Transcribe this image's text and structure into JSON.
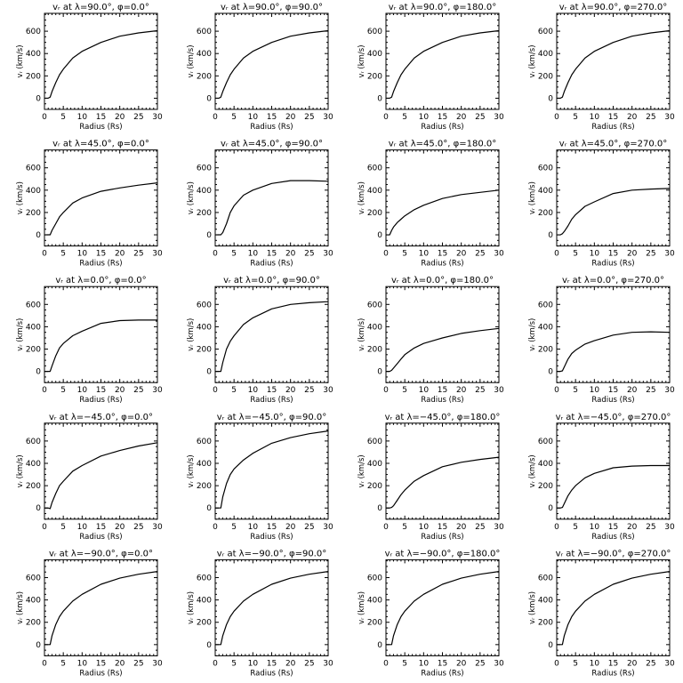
{
  "chart_data": {
    "type": "line",
    "layout": "grid 5 rows x 4 columns",
    "grid": false,
    "xlabel": "Radius (Rs)",
    "ylabel": "vᵣ (km/s)",
    "xlim": [
      0,
      30
    ],
    "ylim": [
      -100,
      760
    ],
    "xticks": [
      0,
      5,
      10,
      15,
      20,
      25,
      30
    ],
    "yticks": [
      0,
      200,
      400,
      600
    ],
    "x": [
      1,
      1.5,
      2,
      3,
      4,
      5,
      7.5,
      10,
      15,
      20,
      25,
      30
    ],
    "panels": [
      {
        "title": "vᵣ at λ=90.0°, φ=0.0°",
        "y": [
          0,
          10,
          60,
          140,
          210,
          260,
          360,
          420,
          500,
          555,
          585,
          605
        ]
      },
      {
        "title": "vᵣ at λ=90.0°, φ=90.0°",
        "y": [
          0,
          10,
          60,
          140,
          210,
          260,
          360,
          420,
          500,
          555,
          585,
          605
        ]
      },
      {
        "title": "vᵣ at λ=90.0°, φ=180.0°",
        "y": [
          0,
          10,
          60,
          140,
          210,
          260,
          360,
          420,
          500,
          555,
          585,
          605
        ]
      },
      {
        "title": "vᵣ at λ=90.0°, φ=270.0°",
        "y": [
          0,
          10,
          60,
          140,
          210,
          260,
          360,
          420,
          500,
          555,
          585,
          605
        ]
      },
      {
        "title": "vᵣ at λ=45.0°, φ=0.0°",
        "y": [
          0,
          0,
          40,
          100,
          160,
          200,
          285,
          330,
          390,
          420,
          445,
          465
        ]
      },
      {
        "title": "vᵣ at λ=45.0°, φ=90.0°",
        "y": [
          0,
          0,
          20,
          100,
          200,
          260,
          355,
          400,
          460,
          485,
          485,
          480
        ]
      },
      {
        "title": "vᵣ at λ=45.0°, φ=180.0°",
        "y": [
          0,
          40,
          70,
          110,
          140,
          170,
          225,
          265,
          325,
          360,
          380,
          400
        ]
      },
      {
        "title": "vᵣ at λ=45.0°, φ=270.0°",
        "y": [
          0,
          10,
          30,
          80,
          140,
          180,
          255,
          295,
          370,
          400,
          410,
          415
        ]
      },
      {
        "title": "vᵣ at λ=0.0°, φ=0.0°",
        "y": [
          0,
          0,
          50,
          140,
          210,
          250,
          320,
          360,
          430,
          455,
          460,
          460
        ]
      },
      {
        "title": "vᵣ at λ=0.0°, φ=90.0°",
        "y": [
          0,
          0,
          80,
          200,
          270,
          320,
          420,
          480,
          560,
          600,
          615,
          625
        ]
      },
      {
        "title": "vᵣ at λ=0.0°, φ=180.0°",
        "y": [
          0,
          10,
          30,
          70,
          110,
          150,
          210,
          250,
          300,
          340,
          365,
          385
        ]
      },
      {
        "title": "vᵣ at λ=0.0°, φ=270.0°",
        "y": [
          0,
          5,
          40,
          110,
          160,
          190,
          245,
          275,
          325,
          350,
          355,
          350
        ]
      },
      {
        "title": "vᵣ at λ=−45.0°, φ=0.0°",
        "y": [
          0,
          -5,
          50,
          130,
          200,
          240,
          330,
          380,
          465,
          515,
          555,
          585
        ]
      },
      {
        "title": "vᵣ at λ=−45.0°, φ=90.0°",
        "y": [
          0,
          0,
          100,
          220,
          300,
          350,
          430,
          490,
          580,
          630,
          665,
          690
        ]
      },
      {
        "title": "vᵣ at λ=−45.0°, φ=180.0°",
        "y": [
          0,
          5,
          20,
          70,
          120,
          160,
          240,
          290,
          370,
          410,
          435,
          455
        ]
      },
      {
        "title": "vᵣ at λ=−45.0°, φ=270.0°",
        "y": [
          0,
          5,
          40,
          110,
          160,
          200,
          270,
          310,
          360,
          375,
          380,
          380
        ]
      },
      {
        "title": "vᵣ at λ=−90.0°, φ=0.0°",
        "y": [
          0,
          0,
          80,
          180,
          250,
          300,
          390,
          450,
          540,
          595,
          630,
          655
        ]
      },
      {
        "title": "vᵣ at λ=−90.0°, φ=90.0°",
        "y": [
          0,
          0,
          80,
          180,
          250,
          300,
          390,
          450,
          540,
          595,
          630,
          655
        ]
      },
      {
        "title": "vᵣ at λ=−90.0°, φ=180.0°",
        "y": [
          0,
          0,
          80,
          180,
          250,
          300,
          390,
          450,
          540,
          595,
          630,
          655
        ]
      },
      {
        "title": "vᵣ at λ=−90.0°, φ=270.0°",
        "y": [
          0,
          0,
          80,
          180,
          250,
          300,
          390,
          450,
          540,
          595,
          630,
          655
        ]
      }
    ],
    "colors": {
      "line": "#000000",
      "background": "#ffffff"
    }
  }
}
